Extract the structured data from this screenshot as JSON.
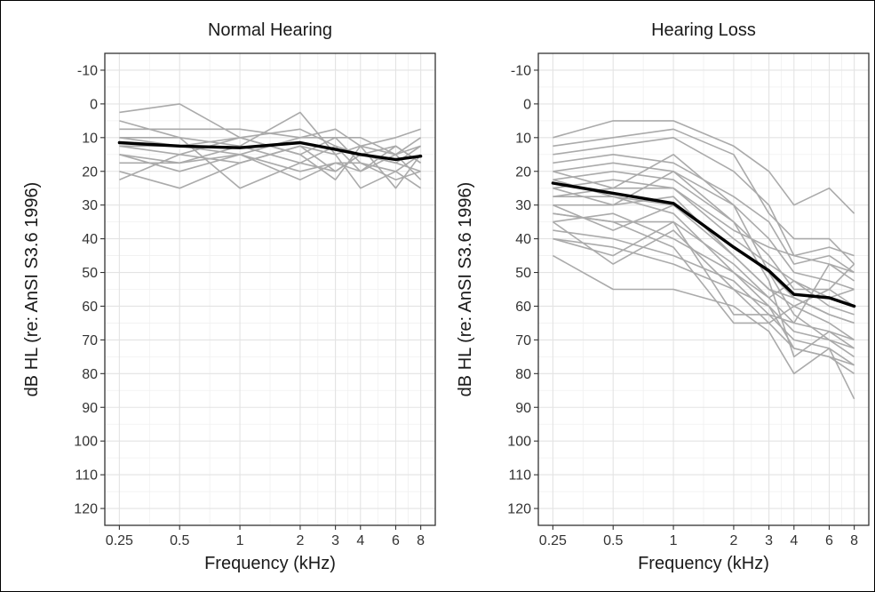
{
  "chart_data": [
    {
      "type": "line",
      "title": "Normal Hearing",
      "xlabel": "Frequency (kHz)",
      "ylabel": "dB HL (re: AnSI S3.6 1996)",
      "x_scale": "log",
      "x": [
        0.25,
        0.5,
        1,
        2,
        3,
        4,
        6,
        8
      ],
      "x_tick_labels": [
        "0.25",
        "0.5",
        "1",
        "2",
        "3",
        "4",
        "6",
        "8"
      ],
      "y_ticks": [
        -10,
        0,
        10,
        20,
        30,
        40,
        50,
        60,
        70,
        80,
        90,
        100,
        110,
        120
      ],
      "y_tick_labels": [
        "-10",
        "0",
        "10",
        "20",
        "30",
        "40",
        "50",
        "60",
        "70",
        "80",
        "90",
        "100",
        "110",
        "120"
      ],
      "ylim": [
        -15,
        125
      ],
      "y_reversed": true,
      "grid": true,
      "series": [
        {
          "role": "individual",
          "color": "#aaaaaa",
          "values": [
            2.5,
            0,
            10,
            7.5,
            12.5,
            15,
            17.5,
            20
          ]
        },
        {
          "role": "individual",
          "color": "#aaaaaa",
          "values": [
            5,
            10,
            12.5,
            2.5,
            15,
            12.5,
            10,
            7.5
          ]
        },
        {
          "role": "individual",
          "color": "#aaaaaa",
          "values": [
            7.5,
            7.5,
            7.5,
            10,
            7.5,
            12.5,
            15,
            12.5
          ]
        },
        {
          "role": "individual",
          "color": "#aaaaaa",
          "values": [
            10,
            12.5,
            10,
            15,
            10,
            17.5,
            20,
            15
          ]
        },
        {
          "role": "individual",
          "color": "#aaaaaa",
          "values": [
            12.5,
            15,
            17.5,
            12.5,
            20,
            15,
            12.5,
            17.5
          ]
        },
        {
          "role": "individual",
          "color": "#aaaaaa",
          "values": [
            15,
            17.5,
            15,
            20,
            17.5,
            20,
            15,
            22.5
          ]
        },
        {
          "role": "individual",
          "color": "#aaaaaa",
          "values": [
            17.5,
            17.5,
            12.5,
            17.5,
            20,
            15,
            17.5,
            12.5
          ]
        },
        {
          "role": "individual",
          "color": "#aaaaaa",
          "values": [
            22.5,
            15,
            10,
            15,
            22.5,
            12.5,
            25,
            15
          ]
        },
        {
          "role": "individual",
          "color": "#aaaaaa",
          "values": [
            20,
            25,
            17.5,
            12.5,
            15,
            25,
            20,
            25
          ]
        },
        {
          "role": "individual",
          "color": "#aaaaaa",
          "values": [
            10,
            10,
            25,
            17.5,
            12.5,
            20,
            12.5,
            17.5
          ]
        },
        {
          "role": "individual",
          "color": "#aaaaaa",
          "values": [
            12.5,
            12.5,
            15,
            22.5,
            17.5,
            17.5,
            22.5,
            20
          ]
        },
        {
          "role": "individual",
          "color": "#aaaaaa",
          "values": [
            15,
            20,
            15,
            10,
            10,
            10,
            15,
            10
          ]
        },
        {
          "role": "mean",
          "color": "#000000",
          "values": [
            11.5,
            12.5,
            13,
            11.5,
            13.5,
            15,
            16.5,
            15.5
          ]
        }
      ]
    },
    {
      "type": "line",
      "title": "Hearing Loss",
      "xlabel": "Frequency (kHz)",
      "ylabel": "dB HL (re: AnSI S3.6 1996)",
      "x_scale": "log",
      "x": [
        0.25,
        0.5,
        1,
        2,
        3,
        4,
        6,
        8
      ],
      "x_tick_labels": [
        "0.25",
        "0.5",
        "1",
        "2",
        "3",
        "4",
        "6",
        "8"
      ],
      "y_ticks": [
        -10,
        0,
        10,
        20,
        30,
        40,
        50,
        60,
        70,
        80,
        90,
        100,
        110,
        120
      ],
      "y_tick_labels": [
        "-10",
        "0",
        "10",
        "20",
        "30",
        "40",
        "50",
        "60",
        "70",
        "80",
        "90",
        "100",
        "110",
        "120"
      ],
      "ylim": [
        -15,
        125
      ],
      "y_reversed": true,
      "grid": true,
      "series": [
        {
          "role": "individual",
          "color": "#aaaaaa",
          "values": [
            10,
            5,
            5,
            12.5,
            20,
            30,
            25,
            32.5
          ]
        },
        {
          "role": "individual",
          "color": "#aaaaaa",
          "values": [
            12.5,
            10,
            7.5,
            15,
            32.5,
            40,
            40,
            47.5
          ]
        },
        {
          "role": "individual",
          "color": "#aaaaaa",
          "values": [
            15,
            12.5,
            10,
            20,
            30,
            45,
            42.5,
            45
          ]
        },
        {
          "role": "individual",
          "color": "#aaaaaa",
          "values": [
            17.5,
            15,
            17.5,
            27.5,
            35,
            47.5,
            45,
            50
          ]
        },
        {
          "role": "individual",
          "color": "#aaaaaa",
          "values": [
            20,
            17.5,
            20,
            30,
            40,
            50,
            52.5,
            55
          ]
        },
        {
          "role": "individual",
          "color": "#aaaaaa",
          "values": [
            22.5,
            20,
            22.5,
            35,
            45,
            55,
            55,
            60
          ]
        },
        {
          "role": "individual",
          "color": "#aaaaaa",
          "values": [
            25,
            22.5,
            25,
            40,
            47.5,
            52.5,
            60,
            62.5
          ]
        },
        {
          "role": "individual",
          "color": "#aaaaaa",
          "values": [
            27.5,
            27.5,
            30,
            42.5,
            50,
            57.5,
            62.5,
            65
          ]
        },
        {
          "role": "individual",
          "color": "#aaaaaa",
          "values": [
            30,
            30,
            27.5,
            45,
            55,
            60,
            65,
            70
          ]
        },
        {
          "role": "individual",
          "color": "#aaaaaa",
          "values": [
            32.5,
            35,
            35,
            47.5,
            57.5,
            65,
            67.5,
            72.5
          ]
        },
        {
          "role": "individual",
          "color": "#aaaaaa",
          "values": [
            35,
            32.5,
            40,
            50,
            60,
            67.5,
            70,
            75
          ]
        },
        {
          "role": "individual",
          "color": "#aaaaaa",
          "values": [
            37.5,
            40,
            45,
            52.5,
            62.5,
            70,
            72.5,
            77.5
          ]
        },
        {
          "role": "individual",
          "color": "#aaaaaa",
          "values": [
            40,
            42.5,
            47.5,
            55,
            65,
            72.5,
            75,
            80
          ]
        },
        {
          "role": "individual",
          "color": "#aaaaaa",
          "values": [
            45,
            55,
            55,
            60,
            67.5,
            80,
            72.5,
            87.5
          ]
        },
        {
          "role": "individual",
          "color": "#aaaaaa",
          "values": [
            20,
            25,
            15,
            30,
            50,
            62.5,
            70,
            72.5
          ]
        },
        {
          "role": "individual",
          "color": "#aaaaaa",
          "values": [
            25,
            30,
            20,
            35,
            52.5,
            75,
            67.5,
            70
          ]
        },
        {
          "role": "individual",
          "color": "#aaaaaa",
          "values": [
            30,
            37.5,
            30,
            45,
            55,
            57.5,
            62.5,
            65
          ]
        },
        {
          "role": "individual",
          "color": "#aaaaaa",
          "values": [
            35,
            47.5,
            37.5,
            55,
            60,
            72.5,
            75,
            77.5
          ]
        },
        {
          "role": "individual",
          "color": "#aaaaaa",
          "values": [
            40,
            45,
            35,
            62.5,
            62.5,
            65,
            47.5,
            50
          ]
        },
        {
          "role": "individual",
          "color": "#aaaaaa",
          "values": [
            27.5,
            25,
            25,
            37.5,
            42.5,
            45,
            47.5,
            52.5
          ]
        },
        {
          "role": "individual",
          "color": "#aaaaaa",
          "values": [
            22.5,
            27.5,
            32.5,
            50,
            57.5,
            52.5,
            57.5,
            55
          ]
        },
        {
          "role": "individual",
          "color": "#aaaaaa",
          "values": [
            32.5,
            35,
            42.5,
            65,
            65,
            60,
            55,
            47.5
          ]
        },
        {
          "role": "mean",
          "color": "#000000",
          "values": [
            23.5,
            26.5,
            29.5,
            42.5,
            49.5,
            56.5,
            57.5,
            60
          ]
        }
      ]
    }
  ]
}
